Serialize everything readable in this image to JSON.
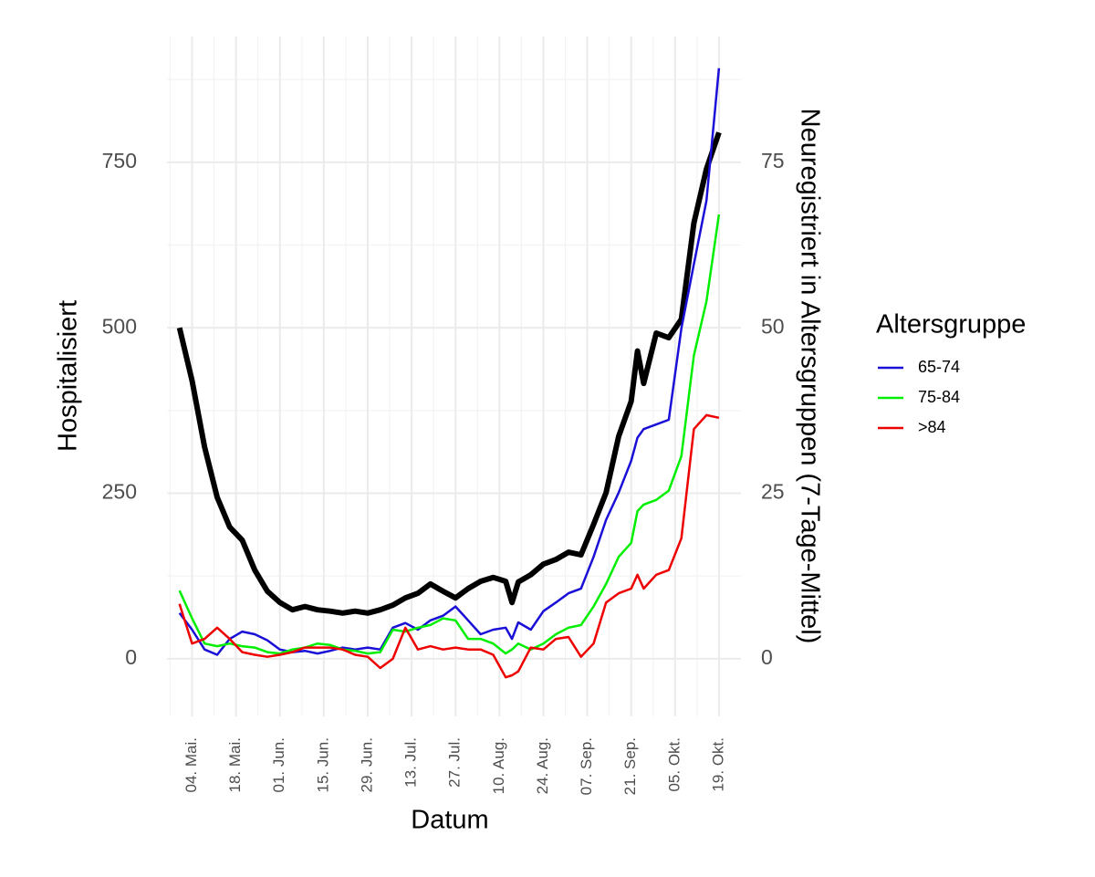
{
  "chart_data": {
    "type": "line",
    "xlabel": "Datum",
    "ylabel": "Hospitalisiert",
    "y2label": "Neuregistriert in Altersgruppen (7-Tage-Mittel)",
    "legend_title": "Altersgruppe",
    "legend": "right",
    "grid": true,
    "x": [
      "04-30",
      "05-04",
      "05-08",
      "05-12",
      "05-16",
      "05-20",
      "05-24",
      "05-28",
      "06-01",
      "06-05",
      "06-09",
      "06-13",
      "06-17",
      "06-21",
      "06-25",
      "06-29",
      "07-03",
      "07-07",
      "07-11",
      "07-15",
      "07-19",
      "07-23",
      "07-27",
      "07-31",
      "08-04",
      "08-08",
      "08-12",
      "08-14",
      "08-16",
      "08-20",
      "08-24",
      "08-28",
      "09-01",
      "09-05",
      "09-09",
      "09-13",
      "09-17",
      "09-21",
      "09-23",
      "09-25",
      "09-29",
      "10-03",
      "10-07",
      "10-11",
      "10-15",
      "10-19"
    ],
    "xlim": [
      "04-26",
      "10-26"
    ],
    "xticks": [
      {
        "value": "05-04",
        "label": "04. Mai."
      },
      {
        "value": "05-18",
        "label": "18. Mai."
      },
      {
        "value": "06-01",
        "label": "01. Jun."
      },
      {
        "value": "06-15",
        "label": "15. Jun."
      },
      {
        "value": "06-29",
        "label": "29. Jun."
      },
      {
        "value": "07-13",
        "label": "13. Jul."
      },
      {
        "value": "07-27",
        "label": "27. Jul."
      },
      {
        "value": "08-10",
        "label": "10. Aug."
      },
      {
        "value": "08-24",
        "label": "24. Aug."
      },
      {
        "value": "09-07",
        "label": "07. Sep."
      },
      {
        "value": "09-21",
        "label": "21. Sep."
      },
      {
        "value": "10-05",
        "label": "05. Okt."
      },
      {
        "value": "10-19",
        "label": "19. Okt."
      }
    ],
    "ylim": [
      -87,
      940
    ],
    "yticks": [
      0,
      250,
      500,
      750
    ],
    "y2lim": [
      -8.7,
      94
    ],
    "y2ticks": [
      0,
      25,
      50,
      75
    ],
    "series": [
      {
        "color": "#000000",
        "width": 6,
        "values": [
          500,
          420,
          320,
          244,
          199,
          179,
          134,
          102,
          85,
          74,
          79,
          74,
          72,
          69,
          72,
          69,
          74,
          81,
          92,
          99,
          113,
          102,
          92,
          106,
          117,
          123,
          117,
          85,
          116,
          127,
          143,
          150,
          161,
          157,
          203,
          251,
          336,
          389,
          465,
          416,
          492,
          485,
          513,
          658,
          740,
          795
        ]
      },
      {
        "name": "65-74",
        "color": "#1a0fd6",
        "axis": "y2",
        "values": [
          6.9,
          4.4,
          1.4,
          0.6,
          3.0,
          4.1,
          3.7,
          2.8,
          1.4,
          1.0,
          1.2,
          0.8,
          1.2,
          1.7,
          1.4,
          1.7,
          1.4,
          4.7,
          5.4,
          4.4,
          5.8,
          6.5,
          7.9,
          5.8,
          3.7,
          4.4,
          4.7,
          3.0,
          5.5,
          4.4,
          7.2,
          8.5,
          9.9,
          10.6,
          15.4,
          21.0,
          25.1,
          29.9,
          33.4,
          34.7,
          35.4,
          36.1,
          49.9,
          59.6,
          69.2,
          89.2
        ]
      },
      {
        "name": "75-84",
        "color": "#00ee00",
        "axis": "y2",
        "values": [
          10.3,
          6.1,
          2.3,
          1.9,
          2.3,
          1.9,
          1.7,
          1.0,
          0.8,
          1.4,
          1.7,
          2.3,
          2.1,
          1.4,
          1.2,
          0.8,
          1.0,
          4.4,
          4.1,
          4.7,
          5.1,
          6.1,
          5.8,
          3.0,
          3.0,
          2.3,
          0.8,
          1.4,
          2.3,
          1.4,
          2.3,
          3.7,
          4.7,
          5.1,
          7.9,
          11.3,
          15.4,
          17.5,
          22.3,
          23.3,
          24.0,
          25.4,
          30.6,
          45.8,
          54.0,
          67.1
        ]
      },
      {
        "name": ">84",
        "color": "#ee0000",
        "axis": "y2",
        "values": [
          8.3,
          2.3,
          3.0,
          4.7,
          3.0,
          1.0,
          0.6,
          0.3,
          0.6,
          1.0,
          1.7,
          1.7,
          1.7,
          1.4,
          0.6,
          0.3,
          -1.4,
          0.0,
          4.7,
          1.4,
          1.9,
          1.4,
          1.7,
          1.4,
          1.4,
          0.6,
          -2.8,
          -2.5,
          -1.9,
          1.7,
          1.4,
          3.0,
          3.3,
          0.3,
          2.3,
          8.5,
          9.9,
          10.6,
          12.7,
          10.6,
          12.7,
          13.4,
          18.2,
          34.7,
          36.8,
          36.4
        ]
      }
    ]
  }
}
